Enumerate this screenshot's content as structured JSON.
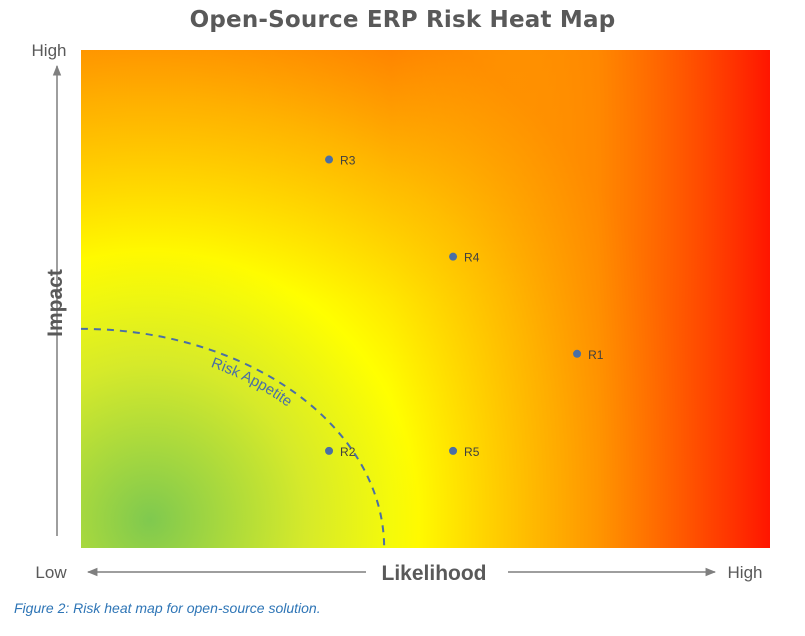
{
  "title": "Open-Source ERP Risk Heat Map",
  "caption": "Figure 2: Risk heat map for open-source solution.",
  "axes": {
    "y_label": "Impact",
    "y_high": "High",
    "x_label": "Likelihood",
    "x_low": "Low",
    "x_high": "High"
  },
  "appetite_label": "Risk Appetite",
  "colors": {
    "low": "#7fc94f",
    "mid": "#ffff00",
    "high": "#ff0000",
    "point": "#4a6fa5",
    "appetite_line": "#4a6fa5",
    "text": "#595959"
  },
  "chart_data": {
    "type": "scatter",
    "title": "Open-Source ERP Risk Heat Map",
    "xlabel": "Likelihood",
    "ylabel": "Impact",
    "xlim": [
      0,
      1
    ],
    "ylim": [
      0,
      1
    ],
    "points": [
      {
        "label": "R1",
        "x": 0.72,
        "y": 0.39
      },
      {
        "label": "R2",
        "x": 0.36,
        "y": 0.195
      },
      {
        "label": "R3",
        "x": 0.36,
        "y": 0.78
      },
      {
        "label": "R4",
        "x": 0.54,
        "y": 0.585
      },
      {
        "label": "R5",
        "x": 0.54,
        "y": 0.195
      }
    ],
    "risk_appetite_radius": 0.44
  }
}
